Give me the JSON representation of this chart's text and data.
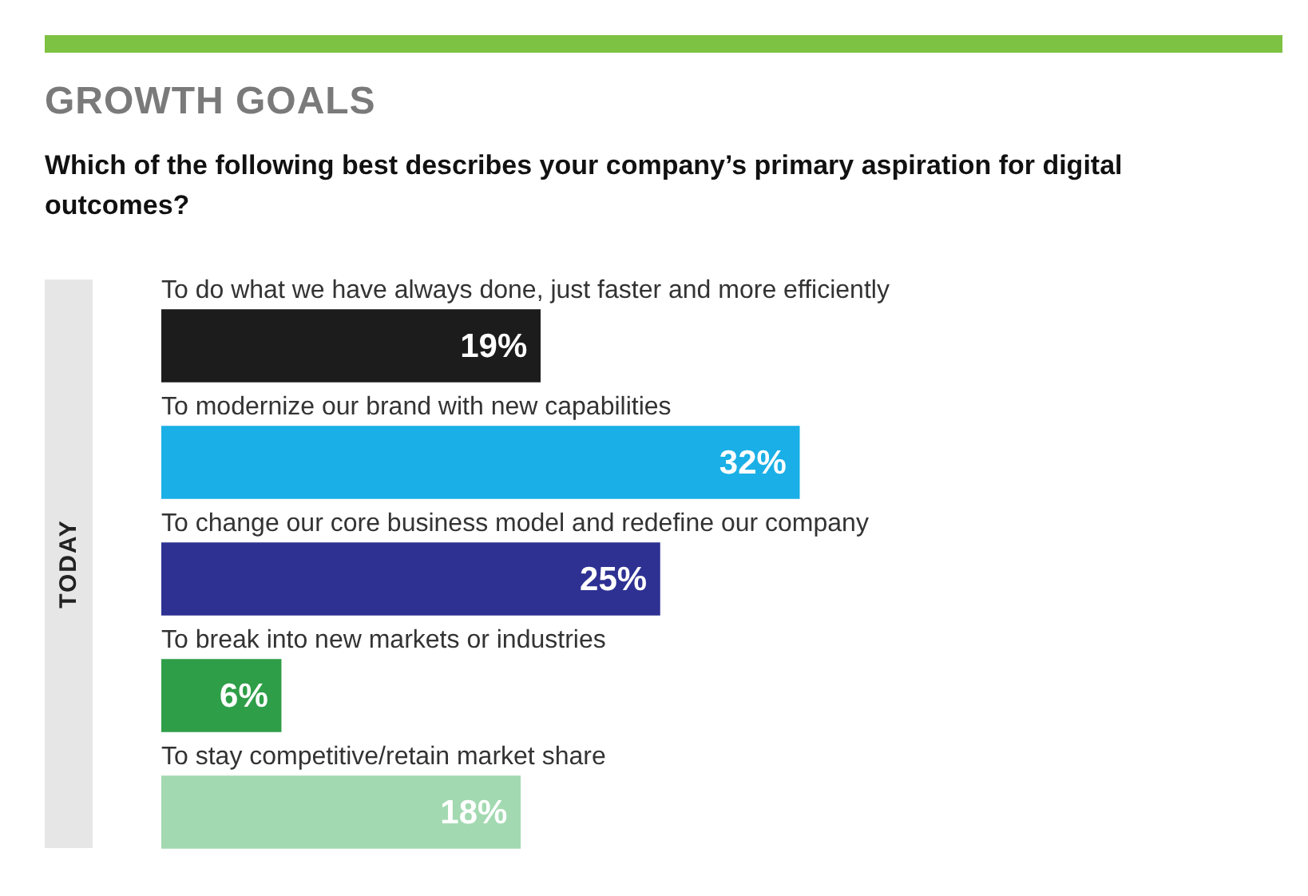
{
  "chart_data": {
    "type": "bar",
    "orientation": "horizontal",
    "title": "GROWTH GOALS",
    "subtitle": "Which of the following best describes your company’s primary aspiration for digital outcomes?",
    "ylabel": "TODAY",
    "categories": [
      "To do what we have always done, just faster and more efficiently",
      "To modernize our brand with new capabilities",
      "To change our core business model and redefine our company",
      "To break into new markets or industries",
      "To stay competitive/retain market share"
    ],
    "values": [
      19,
      32,
      25,
      6,
      18
    ],
    "colors": [
      "#1c1c1c",
      "#1aafe6",
      "#2e3192",
      "#2f9e48",
      "#a3d9b1"
    ],
    "value_labels": [
      "19%",
      "32%",
      "25%",
      "6%",
      "18%"
    ]
  }
}
